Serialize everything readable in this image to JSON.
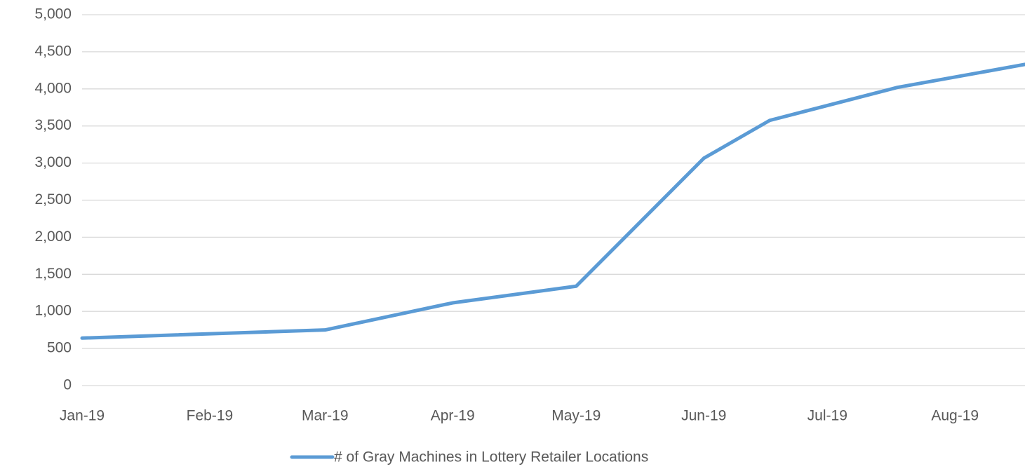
{
  "chart_data": {
    "type": "line",
    "x": [
      "2019-01-01",
      "2019-03-01",
      "2019-04-01",
      "2019-05-01",
      "2019-06-01",
      "2019-06-17",
      "2019-07-18",
      "2019-08-18"
    ],
    "series": [
      {
        "name": "# of Gray Machines in Lottery Retailer Locations",
        "color": "#5b9bd5",
        "values": [
          640,
          750,
          1115,
          1340,
          3065,
          3575,
          4020,
          4330
        ]
      }
    ],
    "xlim": [
      "2019-01-01",
      "2019-08-18"
    ],
    "xticks": [
      {
        "value": "2019-01-01",
        "label": "Jan-19"
      },
      {
        "value": "2019-02-01",
        "label": "Feb-19"
      },
      {
        "value": "2019-03-01",
        "label": "Mar-19"
      },
      {
        "value": "2019-04-01",
        "label": "Apr-19"
      },
      {
        "value": "2019-05-01",
        "label": "May-19"
      },
      {
        "value": "2019-06-01",
        "label": "Jun-19"
      },
      {
        "value": "2019-07-01",
        "label": "Jul-19"
      },
      {
        "value": "2019-08-01",
        "label": "Aug-19"
      }
    ],
    "ylim": [
      0,
      5000
    ],
    "yticks": [
      0,
      500,
      {
        "value": 1000,
        "label": "1,000"
      },
      {
        "value": 1500,
        "label": "1,500"
      },
      {
        "value": 2000,
        "label": "2,000"
      },
      {
        "value": 2500,
        "label": "2,500"
      },
      {
        "value": 3000,
        "label": "3,000"
      },
      {
        "value": 3500,
        "label": "3,500"
      },
      {
        "value": 4000,
        "label": "4,000"
      },
      {
        "value": 4500,
        "label": "4,500"
      },
      {
        "value": 5000,
        "label": "5,000"
      }
    ],
    "grid": true,
    "legend": "bottom"
  }
}
